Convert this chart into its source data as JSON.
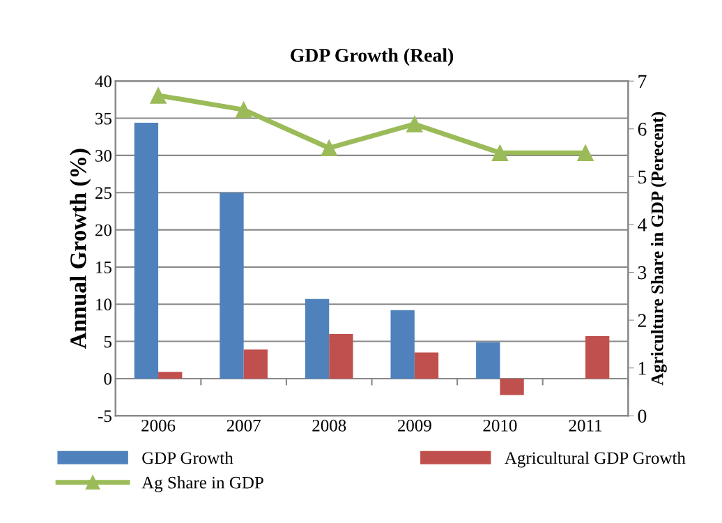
{
  "chart_data": {
    "type": "bar",
    "title": "GDP Growth (Real)",
    "ylabel": "Annual Growth (%)",
    "y2label": "Agriculture Share in GDP (Perecent)",
    "categories": [
      "2006",
      "2007",
      "2008",
      "2009",
      "2010",
      "2011"
    ],
    "series": [
      {
        "name": "GDP Growth",
        "color": "#4f81bd",
        "values": [
          34.4,
          25,
          10.7,
          9.2,
          4.9,
          0
        ]
      },
      {
        "name": "Agricultural GDP Growth",
        "color": "#c0504d",
        "values": [
          0.9,
          3.9,
          6.0,
          3.5,
          -2.2,
          5.7
        ]
      },
      {
        "name": "Ag Share in GDP",
        "type": "line",
        "axis": "y2",
        "marker": "triangle",
        "color": "#9bbb59",
        "values": [
          6.7,
          6.4,
          5.6,
          6.1,
          5.5,
          5.5
        ]
      }
    ],
    "ylim": [
      -5,
      40
    ],
    "yticks": [
      -5,
      0,
      5,
      10,
      15,
      20,
      25,
      30,
      35,
      40
    ],
    "y2lim": [
      0,
      7
    ],
    "y2ticks": [
      0,
      1,
      2,
      3,
      4,
      5,
      6,
      7
    ],
    "grid": "y",
    "legend": "bottom"
  }
}
